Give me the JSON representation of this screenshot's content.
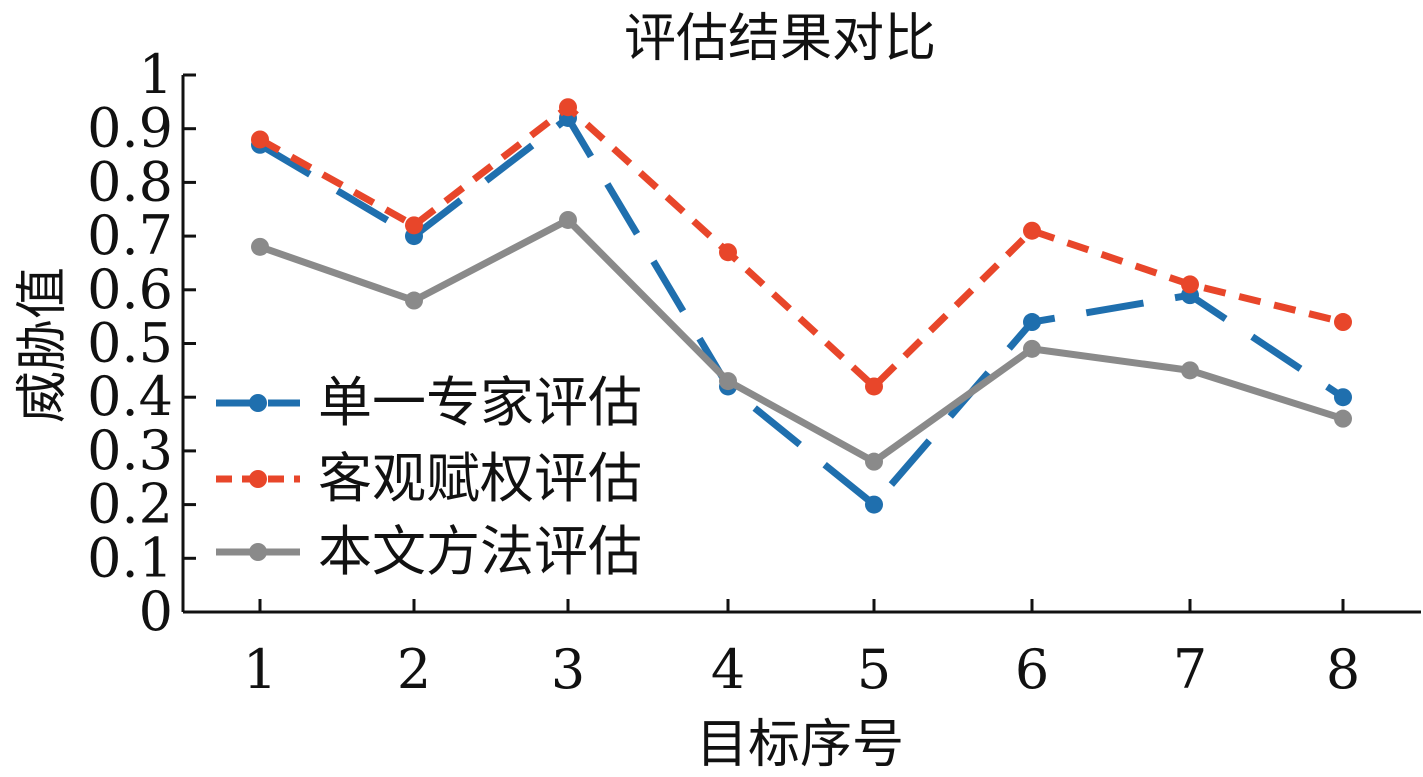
{
  "chart_data": {
    "type": "line",
    "title": "评估结果对比",
    "xlabel": "目标序号",
    "ylabel": "威胁值",
    "x": [
      1,
      2,
      3,
      4,
      5,
      6,
      7,
      8
    ],
    "xticks": [
      "1",
      "2",
      "3",
      "4",
      "5",
      "6",
      "7",
      "8"
    ],
    "ylim": [
      0,
      1
    ],
    "yticks": [
      "0",
      "0.1",
      "0.2",
      "0.3",
      "0.4",
      "0.5",
      "0.6",
      "0.7",
      "0.8",
      "0.9",
      "1"
    ],
    "grid": false,
    "legend": "left",
    "series": [
      {
        "name": "单一专家评估",
        "values": [
          0.87,
          0.7,
          0.92,
          0.42,
          0.2,
          0.54,
          0.59,
          0.4
        ],
        "color": "#1f6fae",
        "dash": "long-dash"
      },
      {
        "name": "客观赋权评估",
        "values": [
          0.88,
          0.72,
          0.94,
          0.67,
          0.42,
          0.71,
          0.61,
          0.54
        ],
        "color": "#e8462a",
        "dash": "short-dash"
      },
      {
        "name": "本文方法评估",
        "values": [
          0.68,
          0.58,
          0.73,
          0.43,
          0.28,
          0.49,
          0.45,
          0.36
        ],
        "color": "#8a8a8a",
        "dash": "solid"
      }
    ]
  }
}
